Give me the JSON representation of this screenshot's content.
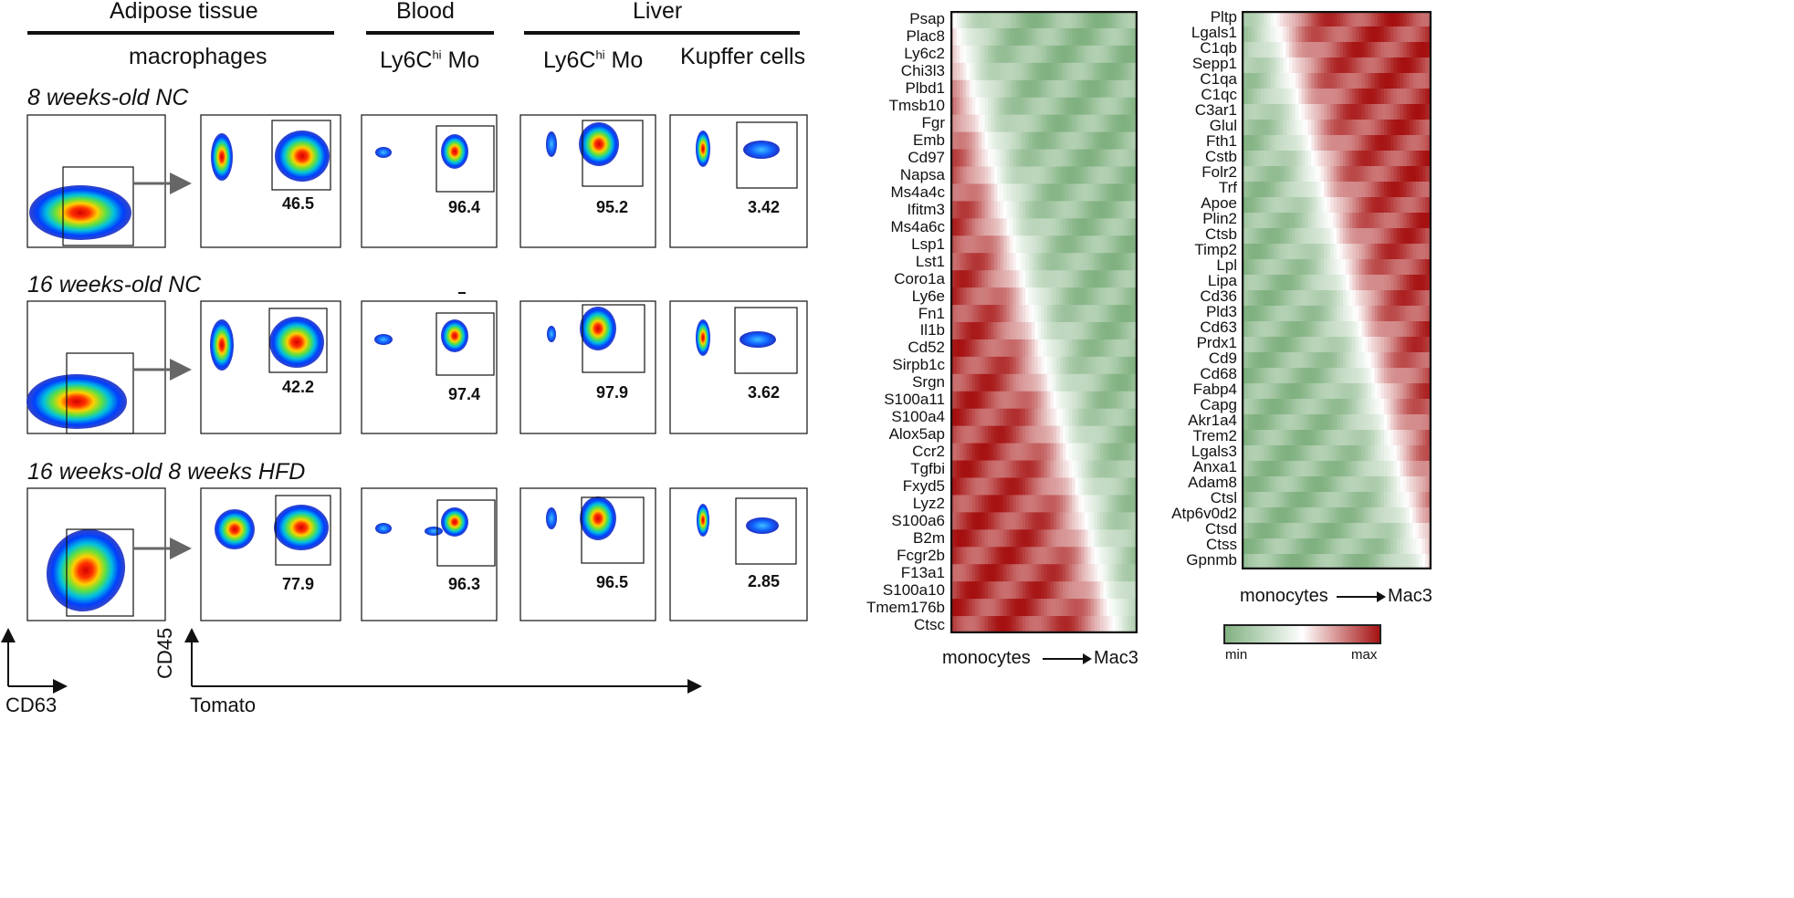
{
  "headers": {
    "adipose": "Adipose tissue",
    "blood": "Blood",
    "liver": "Liver",
    "macrophages": "macrophages",
    "ly6c_blood": "Ly6C",
    "ly6c_blood_sup": "hi",
    "ly6c_blood_suffix": " Mo",
    "ly6c_liver": "Ly6C",
    "ly6c_liver_sup": "hi",
    "ly6c_liver_suffix": " Mo",
    "kupffer": "Kupffer cells"
  },
  "rows": [
    {
      "label": "8 weeks-old NC",
      "values": [
        "46.5",
        "96.4",
        "95.2",
        "3.42"
      ]
    },
    {
      "label": "16 weeks-old NC",
      "values": [
        "42.2",
        "97.4",
        "97.9",
        "3.62"
      ]
    },
    {
      "label": "16 weeks-old 8 weeks HFD",
      "values": [
        "77.9",
        "96.3",
        "96.5",
        "2.85"
      ]
    }
  ],
  "axes": {
    "cd63": "CD63",
    "cd45": "CD45",
    "tomato": "Tomato"
  },
  "heatmap_left": {
    "genes": [
      "Psap",
      "Plac8",
      "Ly6c2",
      "Chi3l3",
      "Plbd1",
      "Tmsb10",
      "Fgr",
      "Emb",
      "Cd97",
      "Napsa",
      "Ms4a4c",
      "Ifitm3",
      "Ms4a6c",
      "Lsp1",
      "Lst1",
      "Coro1a",
      "Ly6e",
      "Fn1",
      "Il1b",
      "Cd52",
      "Sirpb1c",
      "Srgn",
      "S100a11",
      "S100a4",
      "Alox5ap",
      "Ccr2",
      "Tgfbi",
      "Fxyd5",
      "Lyz2",
      "S100a6",
      "B2m",
      "Fcgr2b",
      "F13a1",
      "S100a10",
      "Tmem176b",
      "Ctsc"
    ],
    "xlabel_left": "monocytes",
    "xlabel_right": "Mac3"
  },
  "heatmap_right": {
    "genes": [
      "Pltp",
      "Lgals1",
      "C1qb",
      "Sepp1",
      "C1qa",
      "C1qc",
      "C3ar1",
      "Glul",
      "Fth1",
      "Cstb",
      "Folr2",
      "Trf",
      "Apoe",
      "Plin2",
      "Ctsb",
      "Timp2",
      "Lpl",
      "Lipa",
      "Cd36",
      "Pld3",
      "Cd63",
      "Prdx1",
      "Cd9",
      "Cd68",
      "Fabp4",
      "Capg",
      "Akr1a4",
      "Trem2",
      "Lgals3",
      "Anxa1",
      "Adam8",
      "Ctsl",
      "Atp6v0d2",
      "Ctsd",
      "Ctss",
      "Gpnmb"
    ],
    "xlabel_left": "monocytes",
    "xlabel_right": "Mac3"
  },
  "legend": {
    "min": "min",
    "max": "max",
    "colors": {
      "low": "#7fb07f",
      "mid": "#ffffff",
      "high": "#a50f0f"
    }
  }
}
